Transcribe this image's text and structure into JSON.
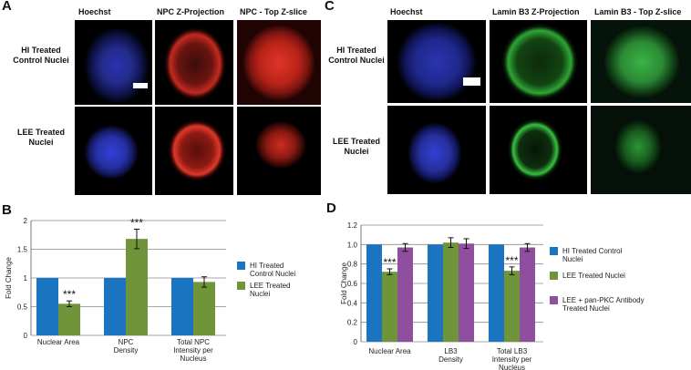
{
  "panelA": {
    "letter": "A",
    "columns": [
      "Hoechst",
      "NPC Z-Projection",
      "NPC - Top Z-slice"
    ],
    "rows": [
      "HI Treated Control Nuclei",
      "LEE Treated Nuclei"
    ]
  },
  "panelC": {
    "letter": "C",
    "columns": [
      "Hoechst",
      "Lamin B3 Z-Projection",
      "Lamin B3 - Top Z-slice"
    ],
    "rows": [
      "HI Treated Control Nuclei",
      "LEE Treated Nuclei"
    ]
  },
  "chart_data": [
    {
      "panel": "B",
      "type": "bar",
      "ylabel": "Fold Change",
      "ylim": [
        0,
        2.0
      ],
      "yticks": [
        "0",
        "0.5",
        "1",
        "1.5",
        "2"
      ],
      "categories": [
        "Nuclear Area",
        "NPC Density",
        "Total NPC Intensity per Nucleus"
      ],
      "category_labels": [
        [
          "Nuclear Area"
        ],
        [
          "NPC",
          "Density"
        ],
        [
          "Total NPC",
          "Intensity per",
          "Nucleus"
        ]
      ],
      "series": [
        {
          "name": "HI Treated Control Nuclei",
          "color": "#1a74c0",
          "values": [
            1.0,
            1.0,
            1.0
          ],
          "errors": [
            0,
            0,
            0
          ]
        },
        {
          "name": "LEE Treated Nuclei",
          "color": "#70943a",
          "values": [
            0.55,
            1.68,
            0.93
          ],
          "errors": [
            0.05,
            0.17,
            0.09
          ]
        }
      ],
      "annotations": [
        {
          "category": 0,
          "series": 1,
          "text": "***"
        },
        {
          "category": 1,
          "series": 1,
          "text": "***"
        }
      ],
      "grid": true,
      "legend": "right"
    },
    {
      "panel": "D",
      "type": "bar",
      "ylabel": "Fold Change",
      "ylim": [
        0,
        1.2
      ],
      "yticks": [
        "0",
        "0.2",
        "0.4",
        "0.6",
        "0.8",
        "1.0",
        "1.2"
      ],
      "categories": [
        "Nuclear Area",
        "LB3 Density",
        "Total LB3 Intensity per Nucleus"
      ],
      "category_labels": [
        [
          "Nuclear Area"
        ],
        [
          "LB3",
          "Density"
        ],
        [
          "Total LB3",
          "Intensity per",
          "Nucleus"
        ]
      ],
      "series": [
        {
          "name": "HI Treated Control Nuclei",
          "color": "#1a74c0",
          "values": [
            1.0,
            1.0,
            1.0
          ],
          "errors": [
            0,
            0,
            0
          ]
        },
        {
          "name": "LEE Treated Nuclei",
          "color": "#70943a",
          "values": [
            0.72,
            1.02,
            0.73
          ],
          "errors": [
            0.03,
            0.05,
            0.04
          ]
        },
        {
          "name": "LEE + pan-PKC Antibody Treated Nuclei",
          "color": "#8f4f9f",
          "values": [
            0.97,
            1.01,
            0.97
          ],
          "errors": [
            0.04,
            0.05,
            0.04
          ]
        }
      ],
      "annotations": [
        {
          "category": 0,
          "series": 1,
          "text": "***"
        },
        {
          "category": 2,
          "series": 1,
          "text": "***"
        }
      ],
      "grid": true,
      "legend": "right"
    }
  ]
}
